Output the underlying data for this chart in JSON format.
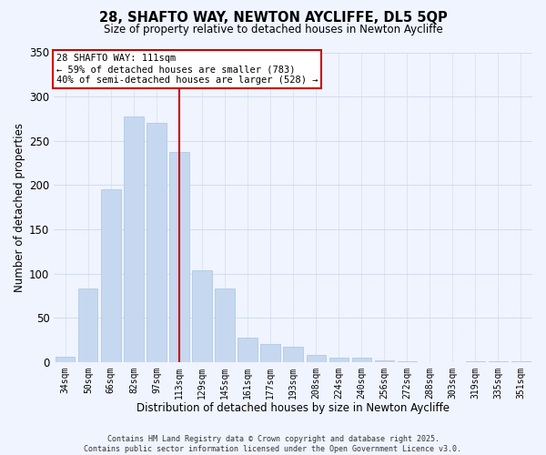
{
  "title": "28, SHAFTO WAY, NEWTON AYCLIFFE, DL5 5QP",
  "subtitle": "Size of property relative to detached houses in Newton Aycliffe",
  "xlabel": "Distribution of detached houses by size in Newton Aycliffe",
  "ylabel": "Number of detached properties",
  "bar_labels": [
    "34sqm",
    "50sqm",
    "66sqm",
    "82sqm",
    "97sqm",
    "113sqm",
    "129sqm",
    "145sqm",
    "161sqm",
    "177sqm",
    "193sqm",
    "208sqm",
    "224sqm",
    "240sqm",
    "256sqm",
    "272sqm",
    "288sqm",
    "303sqm",
    "319sqm",
    "335sqm",
    "351sqm"
  ],
  "bar_values": [
    6,
    83,
    195,
    277,
    270,
    237,
    104,
    83,
    28,
    20,
    17,
    8,
    5,
    5,
    2,
    1,
    0,
    0,
    1,
    1,
    1
  ],
  "bar_color": "#c5d8f0",
  "bar_edge_color": "#aac4e0",
  "vline_x": 5,
  "vline_color": "#cc0000",
  "ylim": [
    0,
    350
  ],
  "yticks": [
    0,
    50,
    100,
    150,
    200,
    250,
    300,
    350
  ],
  "annotation_title": "28 SHAFTO WAY: 111sqm",
  "annotation_line1": "← 59% of detached houses are smaller (783)",
  "annotation_line2": "40% of semi-detached houses are larger (528) →",
  "annotation_box_color": "#ffffff",
  "annotation_box_edge": "#cc0000",
  "footer1": "Contains HM Land Registry data © Crown copyright and database right 2025.",
  "footer2": "Contains public sector information licensed under the Open Government Licence v3.0.",
  "background_color": "#f0f4ff"
}
